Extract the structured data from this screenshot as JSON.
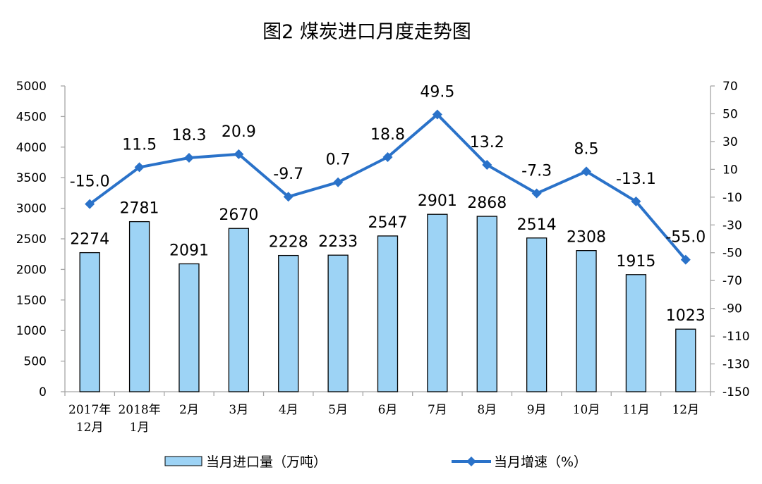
{
  "chart_data": {
    "type": "bar",
    "title": "图2  煤炭进口月度走势图",
    "categories": [
      [
        "2017年",
        "12月"
      ],
      [
        "2018年",
        "1月"
      ],
      [
        "2月"
      ],
      [
        "3月"
      ],
      [
        "4月"
      ],
      [
        "5月"
      ],
      [
        "6月"
      ],
      [
        "7月"
      ],
      [
        "8月"
      ],
      [
        "9月"
      ],
      [
        "10月"
      ],
      [
        "11月"
      ],
      [
        "12月"
      ]
    ],
    "series": [
      {
        "name": "当月进口量（万吨）",
        "type": "bar",
        "axis": "left",
        "color": "#9dd3f5",
        "values": [
          2274,
          2781,
          2091,
          2670,
          2228,
          2233,
          2547,
          2901,
          2868,
          2514,
          2308,
          1915,
          1023
        ],
        "labels": [
          "2274",
          "2781",
          "2091",
          "2670",
          "2228",
          "2233",
          "2547",
          "2901",
          "2868",
          "2514",
          "2308",
          "1915",
          "1023"
        ]
      },
      {
        "name": "当月增速（%）",
        "type": "line",
        "axis": "right",
        "color": "#2a72c9",
        "values": [
          -15.0,
          11.5,
          18.3,
          20.9,
          -9.7,
          0.7,
          18.8,
          49.5,
          13.2,
          -7.3,
          8.5,
          -13.1,
          -55.0
        ],
        "labels": [
          "-15.0",
          "11.5",
          "18.3",
          "20.9",
          "-9.7",
          "0.7",
          "18.8",
          "49.5",
          "13.2",
          "-7.3",
          "8.5",
          "-13.1",
          "-55.0"
        ]
      }
    ],
    "ylim_left": [
      0,
      5000
    ],
    "yticks_left": [
      "5000",
      "4500",
      "4000",
      "3500",
      "3000",
      "2500",
      "2000",
      "1500",
      "1000",
      "500",
      "0"
    ],
    "ylim_right": [
      -150,
      70
    ],
    "yticks_right": [
      "70",
      "50",
      "30",
      "10",
      "-10",
      "-30",
      "-50",
      "-70",
      "-90",
      "-110",
      "-130",
      "-150"
    ],
    "grid": false,
    "legend_position": "bottom"
  }
}
